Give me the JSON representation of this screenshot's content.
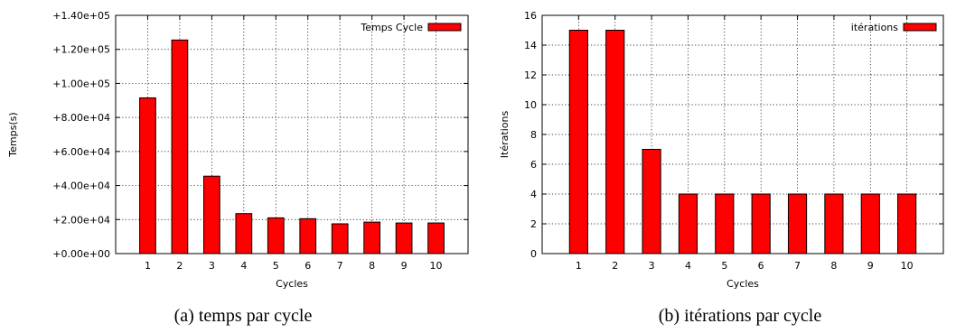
{
  "chart_data": [
    {
      "type": "bar",
      "categories": [
        "1",
        "2",
        "3",
        "4",
        "5",
        "6",
        "7",
        "8",
        "9",
        "10"
      ],
      "series": [
        {
          "name": "Temps Cycle",
          "values": [
            91500,
            125500,
            45500,
            23500,
            21000,
            20500,
            17500,
            18500,
            18000,
            18000
          ]
        }
      ],
      "xlabel": "Cycles",
      "ylabel": "Temps(s)",
      "ylim": [
        0,
        140000
      ],
      "yticks": [
        0,
        20000,
        40000,
        60000,
        80000,
        100000,
        120000,
        140000
      ],
      "ytick_labels": [
        "+0.00e+00",
        "+2.00e+04",
        "+4.00e+04",
        "+6.00e+04",
        "+8.00e+04",
        "+1.00e+05",
        "+1.20e+05",
        "+1.40e+05"
      ],
      "grid": true,
      "legend_position": "top-right",
      "bar_color": "#ff0000",
      "caption": "(a) temps par cycle"
    },
    {
      "type": "bar",
      "categories": [
        "1",
        "2",
        "3",
        "4",
        "5",
        "6",
        "7",
        "8",
        "9",
        "10"
      ],
      "series": [
        {
          "name": "itérations",
          "values": [
            15,
            15,
            7,
            4,
            4,
            4,
            4,
            4,
            4,
            4
          ]
        }
      ],
      "xlabel": "Cycles",
      "ylabel": "Itérations",
      "ylim": [
        0,
        16
      ],
      "yticks": [
        0,
        2,
        4,
        6,
        8,
        10,
        12,
        14,
        16
      ],
      "ytick_labels": [
        "0",
        "2",
        "4",
        "6",
        "8",
        "10",
        "12",
        "14",
        "16"
      ],
      "grid": true,
      "legend_position": "top-right",
      "bar_color": "#ff0000",
      "caption": "(b) itérations par cycle"
    }
  ]
}
